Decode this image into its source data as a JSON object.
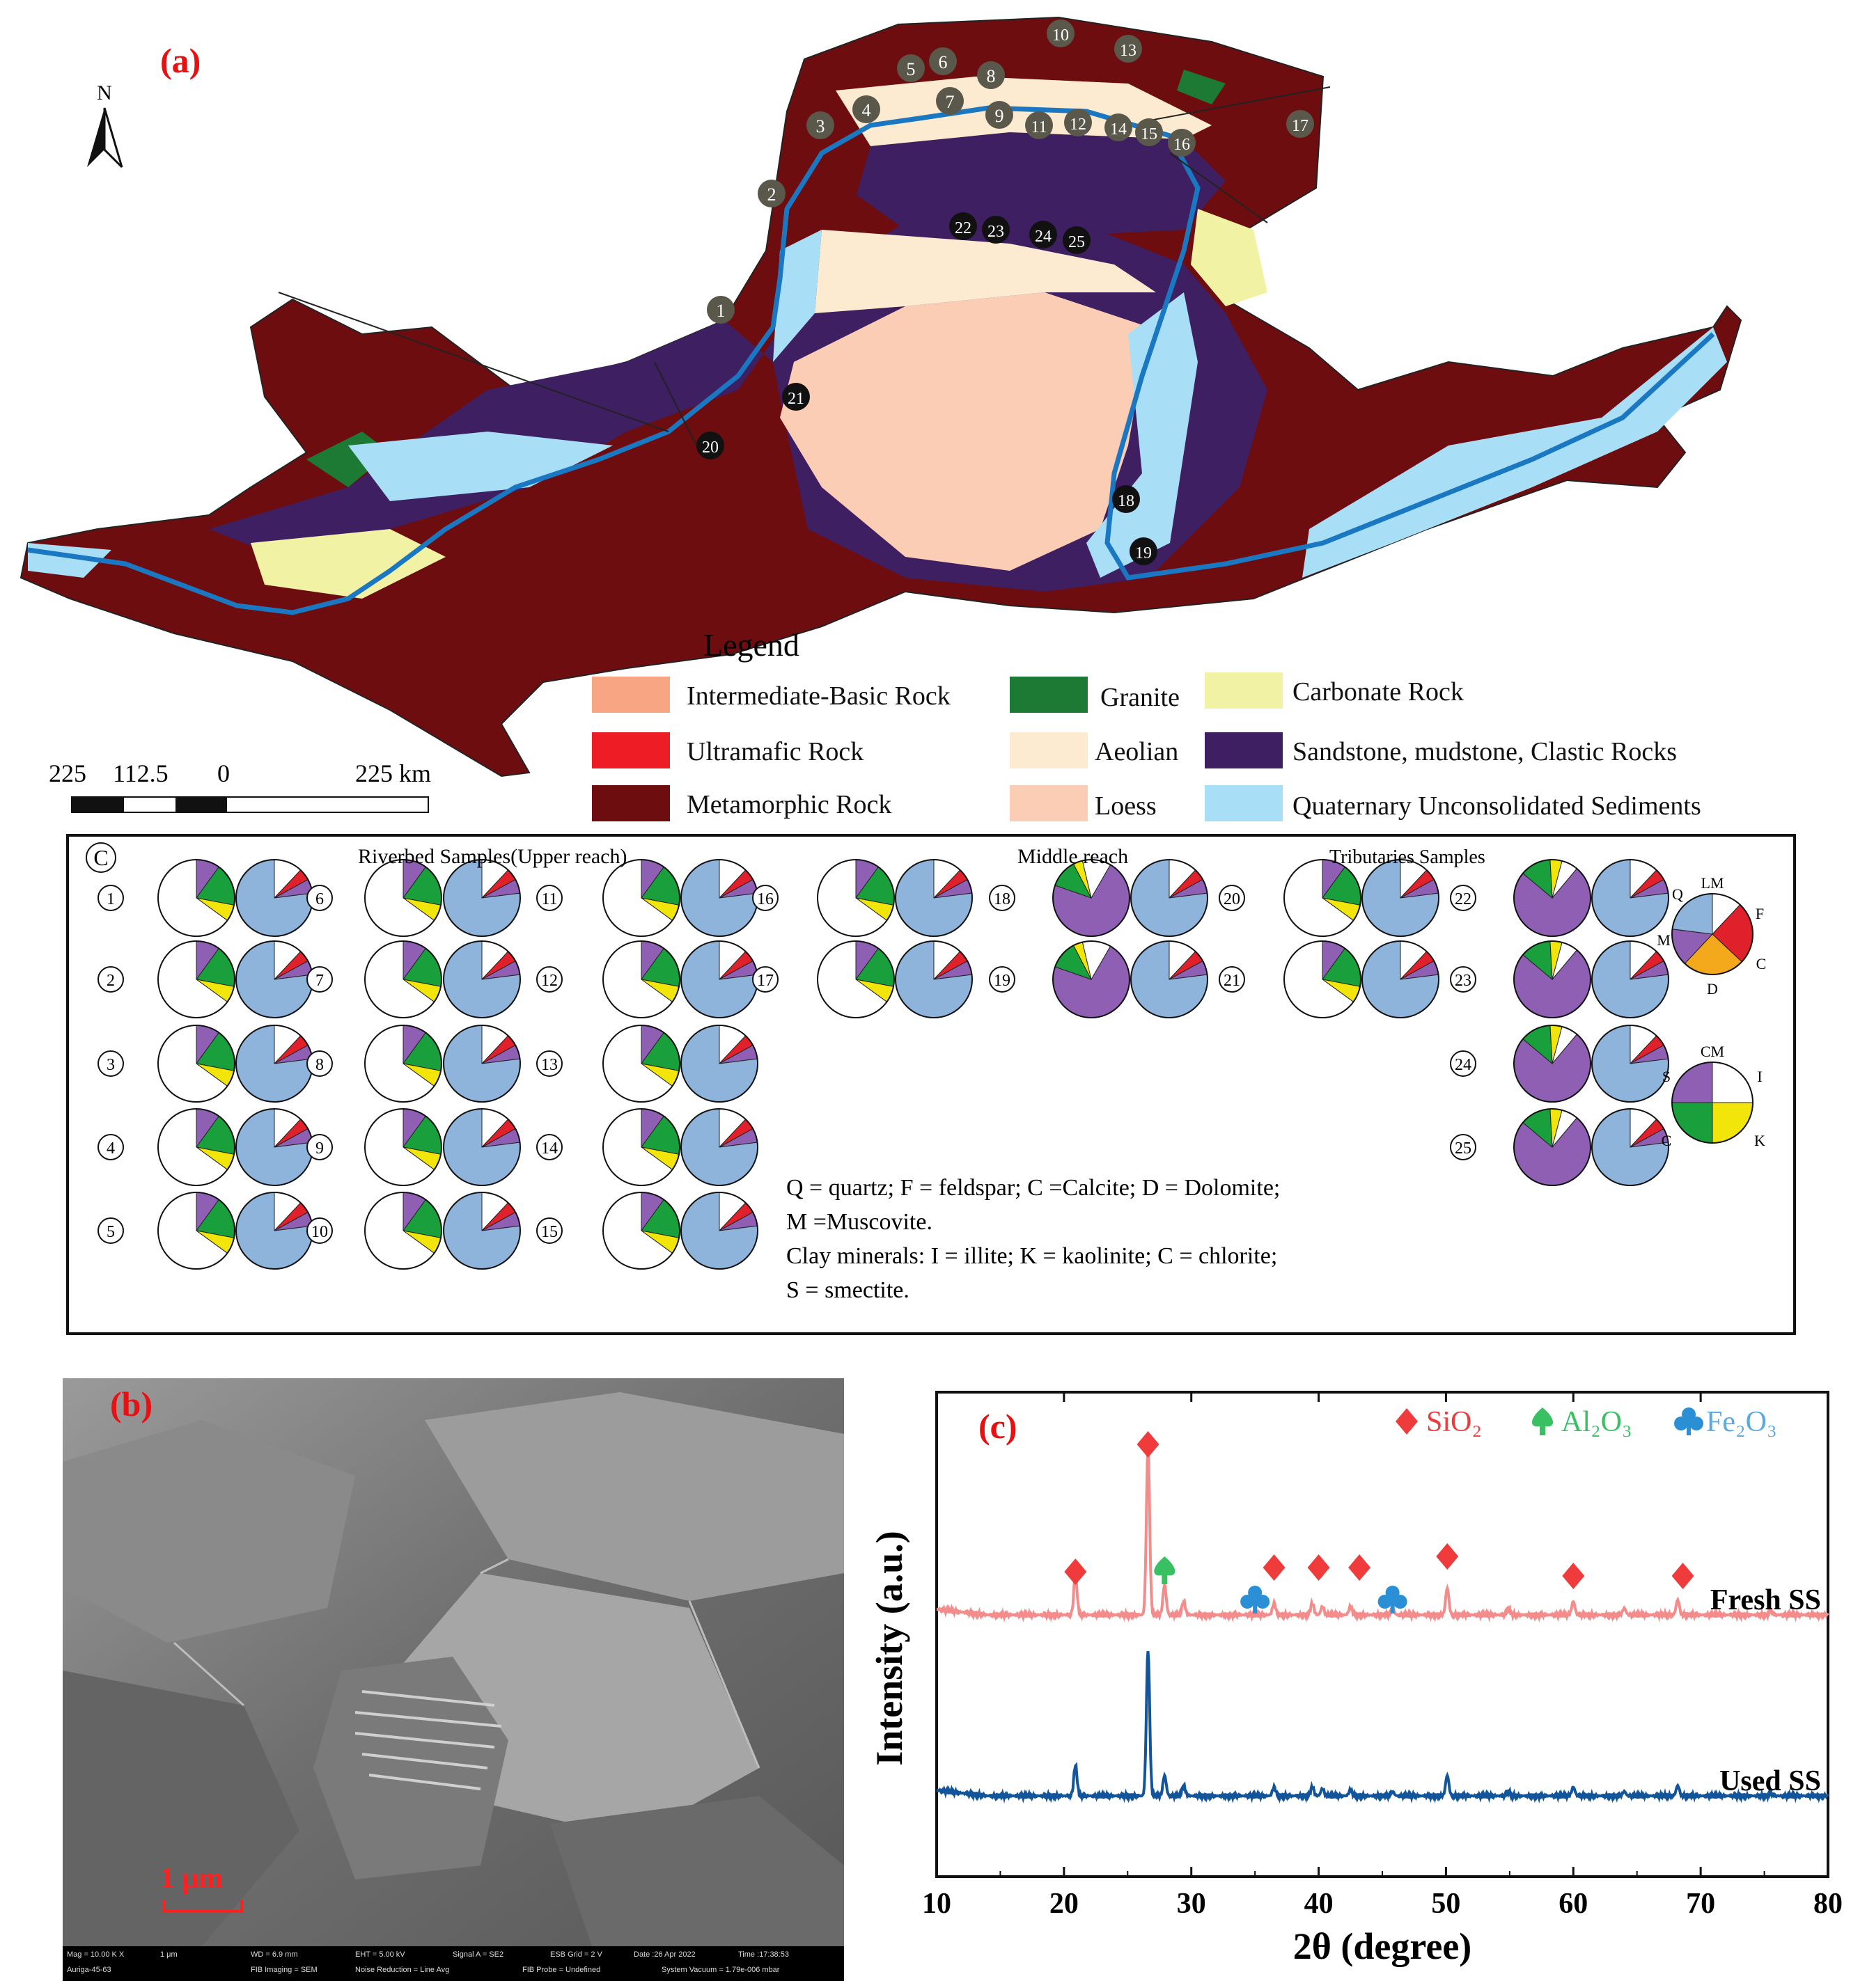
{
  "panels": {
    "a": "(a)",
    "b": "(b)",
    "c": "(c)"
  },
  "map": {
    "north": "N",
    "scale_labels": [
      "225",
      "112.5",
      "0",
      "225 km"
    ],
    "site_labels_grey": [
      "1",
      "2",
      "3",
      "4",
      "5",
      "6",
      "7",
      "8",
      "9",
      "10",
      "11",
      "12",
      "13",
      "14",
      "15",
      "16",
      "17"
    ],
    "site_labels_black": [
      "18",
      "19",
      "20",
      "21",
      "22",
      "23",
      "24",
      "25"
    ],
    "legend_title": "Legend",
    "legend": [
      {
        "label": "Intermediate-Basic Rock",
        "color": "#f7a582"
      },
      {
        "label": "Ultramafic Rock",
        "color": "#ee1c24"
      },
      {
        "label": "Metamorphic Rock",
        "color": "#6e0d10"
      },
      {
        "label": "Granite",
        "color": "#1c7a35"
      },
      {
        "label": "Aeolian",
        "color": "#fdebd1"
      },
      {
        "label": "Loess",
        "color": "#fbcdb5"
      },
      {
        "label": "Carbonate Rock",
        "color": "#f2f2a4"
      },
      {
        "label": "Sandstone, mudstone, Clastic Rocks",
        "color": "#3e1f62"
      },
      {
        "label": "Quaternary Unconsolidated Sediments",
        "color": "#a8def6"
      }
    ]
  },
  "mineral_panel": {
    "corner_label": "C",
    "headers": {
      "upper": "Riverbed Samples(Upper reach)",
      "middle": "Middle reach",
      "tributaries": "Tributaries Samples"
    },
    "note_lines": [
      "Q = quartz; F = feldspar; C =Calcite; D = Dolomite;",
      "M =Muscovite.",
      "Clay minerals: I = illite; K = kaolinite; C = chlorite;",
      "S = smectite."
    ],
    "key_LM": {
      "title": "LM",
      "labels": [
        "Q",
        "F",
        "C",
        "D",
        "M"
      ]
    },
    "key_CM": {
      "title": "CM",
      "labels": [
        "S",
        "I",
        "C",
        "K"
      ]
    },
    "colors": {
      "white": "#ffffff",
      "blue": "#8fb4dc",
      "purple": "#8e5fb3",
      "green": "#19a03c",
      "yellow": "#f2e50a",
      "red": "#e0202a",
      "orange": "#f4a81c"
    },
    "samples": [
      "1",
      "2",
      "3",
      "4",
      "5",
      "6",
      "7",
      "8",
      "9",
      "10",
      "11",
      "12",
      "13",
      "14",
      "15",
      "16",
      "17",
      "18",
      "19",
      "20",
      "21",
      "22",
      "23",
      "24",
      "25"
    ]
  },
  "sem": {
    "scale": "1 μm",
    "info": [
      "Mag = 10.00 K X",
      "1 μm",
      "WD = 6.9 mm",
      "EHT = 5.00 kV",
      "Signal A = SE2",
      "ESB Grid = 2 V",
      "Date :26 Apr 2022",
      "Time :17:38:53",
      "Auriga-45-63",
      "FIB Imaging = SEM",
      "Noise Reduction = Line Avg",
      "FIB Probe = Undefined",
      "System Vacuum = 1.79e-006 mbar"
    ]
  },
  "xrd": {
    "legend": [
      "SiO₂",
      "Al₂O₃",
      "Fe₂O₃"
    ],
    "series_labels": [
      "Fresh SS",
      "Used SS"
    ]
  },
  "chart_data": {
    "type": "line",
    "xlabel": "2θ (degree)",
    "ylabel": "Intensity (a.u.)",
    "xlim": [
      10,
      80
    ],
    "xticks": [
      10,
      20,
      30,
      40,
      50,
      60,
      70,
      80
    ],
    "grid": false,
    "legend_position": "top-right",
    "series": [
      {
        "name": "Fresh SS",
        "color": "#f58c8c",
        "peaks": [
          [
            20.9,
            0.24
          ],
          [
            26.6,
            1.0
          ],
          [
            27.9,
            0.18
          ],
          [
            29.4,
            0.08
          ],
          [
            36.5,
            0.07
          ],
          [
            39.5,
            0.07
          ],
          [
            40.3,
            0.05
          ],
          [
            42.5,
            0.05
          ],
          [
            45.8,
            0.04
          ],
          [
            50.1,
            0.16
          ],
          [
            54.9,
            0.04
          ],
          [
            60.0,
            0.08
          ],
          [
            64.0,
            0.04
          ],
          [
            68.2,
            0.09
          ],
          [
            75.5,
            0.03
          ]
        ]
      },
      {
        "name": "Used SS",
        "color": "#12559a",
        "peaks": [
          [
            20.9,
            0.21
          ],
          [
            26.6,
            1.0
          ],
          [
            27.9,
            0.14
          ],
          [
            29.4,
            0.07
          ],
          [
            36.5,
            0.06
          ],
          [
            39.5,
            0.06
          ],
          [
            40.3,
            0.05
          ],
          [
            42.5,
            0.04
          ],
          [
            45.8,
            0.03
          ],
          [
            50.1,
            0.14
          ],
          [
            54.9,
            0.03
          ],
          [
            60.0,
            0.06
          ],
          [
            64.0,
            0.03
          ],
          [
            68.2,
            0.07
          ],
          [
            75.5,
            0.02
          ]
        ]
      }
    ],
    "markers": {
      "SiO2": [
        20.9,
        26.6,
        36.5,
        40.0,
        43.2,
        50.1,
        60.0,
        68.6
      ],
      "Al2O3": [
        27.9
      ],
      "Fe2O3": [
        35.0,
        45.8
      ]
    }
  }
}
